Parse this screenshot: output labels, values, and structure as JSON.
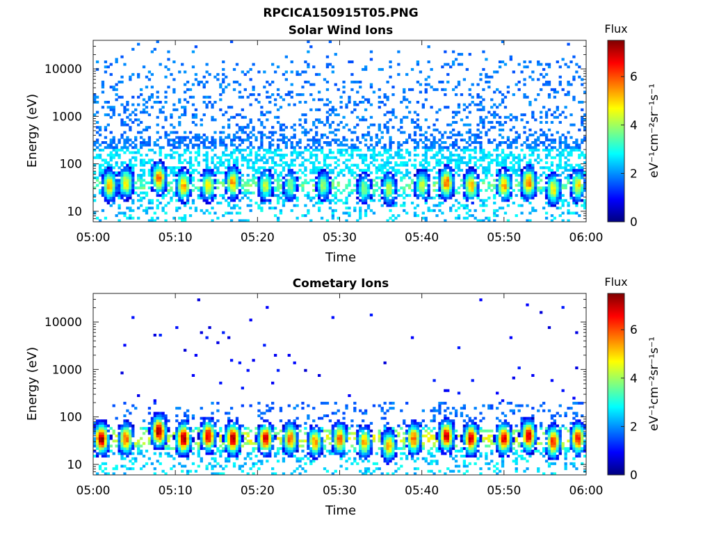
{
  "figure": {
    "title": "RPCICA150915T05.PNG"
  },
  "colorbar": {
    "label": "Flux",
    "units": "eV⁻¹cm⁻²sr⁻¹s⁻¹",
    "ticks": [
      0,
      2,
      4,
      6
    ],
    "range": [
      0,
      7.5
    ],
    "colormap": "jet"
  },
  "chart_data": [
    {
      "type": "heatmap",
      "title": "Solar Wind Ions",
      "xlabel": "Time",
      "ylabel": "Energy (eV)",
      "yscale": "log",
      "ylim": [
        6,
        40000
      ],
      "xticks": [
        "05:00",
        "05:10",
        "05:20",
        "05:30",
        "05:40",
        "05:50",
        "06:00"
      ],
      "yticks": [
        {
          "v": 10,
          "label": "10"
        },
        {
          "v": 100,
          "label": "100"
        },
        {
          "v": 1000,
          "label": "1000"
        },
        {
          "v": 10000,
          "label": "10000"
        }
      ],
      "background_flux_level": 1.5,
      "low_energy_band": {
        "energy_center_eV": 35,
        "flux_typical": 3.5
      },
      "bursts": [
        {
          "time": "05:02",
          "energy_eV": 35,
          "peak_flux": 5.5
        },
        {
          "time": "05:04",
          "energy_eV": 40,
          "peak_flux": 5.0
        },
        {
          "time": "05:08",
          "energy_eV": 50,
          "peak_flux": 6.0
        },
        {
          "time": "05:11",
          "energy_eV": 35,
          "peak_flux": 5.5
        },
        {
          "time": "05:14",
          "energy_eV": 35,
          "peak_flux": 5.0
        },
        {
          "time": "05:17",
          "energy_eV": 40,
          "peak_flux": 5.5
        },
        {
          "time": "05:21",
          "energy_eV": 35,
          "peak_flux": 4.5
        },
        {
          "time": "05:24",
          "energy_eV": 35,
          "peak_flux": 4.0
        },
        {
          "time": "05:28",
          "energy_eV": 35,
          "peak_flux": 4.0
        },
        {
          "time": "05:33",
          "energy_eV": 30,
          "peak_flux": 4.0
        },
        {
          "time": "05:36",
          "energy_eV": 30,
          "peak_flux": 4.5
        },
        {
          "time": "05:40",
          "energy_eV": 35,
          "peak_flux": 4.5
        },
        {
          "time": "05:43",
          "energy_eV": 40,
          "peak_flux": 6.0
        },
        {
          "time": "05:46",
          "energy_eV": 35,
          "peak_flux": 5.5
        },
        {
          "time": "05:50",
          "energy_eV": 35,
          "peak_flux": 5.5
        },
        {
          "time": "05:53",
          "energy_eV": 40,
          "peak_flux": 6.0
        },
        {
          "time": "05:56",
          "energy_eV": 30,
          "peak_flux": 5.0
        },
        {
          "time": "05:59",
          "energy_eV": 35,
          "peak_flux": 5.0
        }
      ]
    },
    {
      "type": "heatmap",
      "title": "Cometary Ions",
      "xlabel": "Time",
      "ylabel": "Energy (eV)",
      "yscale": "log",
      "ylim": [
        6,
        40000
      ],
      "xticks": [
        "05:00",
        "05:10",
        "05:20",
        "05:30",
        "05:40",
        "05:50",
        "06:00"
      ],
      "yticks": [
        {
          "v": 10,
          "label": "10"
        },
        {
          "v": 100,
          "label": "100"
        },
        {
          "v": 1000,
          "label": "1000"
        },
        {
          "v": 10000,
          "label": "10000"
        }
      ],
      "background_flux_level": 0.6,
      "low_energy_band": {
        "energy_center_eV": 35,
        "flux_typical": 4.5
      },
      "bursts": [
        {
          "time": "05:01",
          "energy_eV": 35,
          "peak_flux": 7.5
        },
        {
          "time": "05:04",
          "energy_eV": 35,
          "peak_flux": 6.0
        },
        {
          "time": "05:08",
          "energy_eV": 50,
          "peak_flux": 7.5
        },
        {
          "time": "05:11",
          "energy_eV": 35,
          "peak_flux": 7.5
        },
        {
          "time": "05:14",
          "energy_eV": 40,
          "peak_flux": 7.0
        },
        {
          "time": "05:17",
          "energy_eV": 35,
          "peak_flux": 7.5
        },
        {
          "time": "05:21",
          "energy_eV": 35,
          "peak_flux": 7.0
        },
        {
          "time": "05:24",
          "energy_eV": 35,
          "peak_flux": 6.0
        },
        {
          "time": "05:27",
          "energy_eV": 30,
          "peak_flux": 5.5
        },
        {
          "time": "05:30",
          "energy_eV": 35,
          "peak_flux": 6.0
        },
        {
          "time": "05:33",
          "energy_eV": 30,
          "peak_flux": 5.5
        },
        {
          "time": "05:36",
          "energy_eV": 25,
          "peak_flux": 5.5
        },
        {
          "time": "05:39",
          "energy_eV": 35,
          "peak_flux": 6.0
        },
        {
          "time": "05:43",
          "energy_eV": 40,
          "peak_flux": 7.0
        },
        {
          "time": "05:46",
          "energy_eV": 35,
          "peak_flux": 7.0
        },
        {
          "time": "05:50",
          "energy_eV": 35,
          "peak_flux": 7.0
        },
        {
          "time": "05:53",
          "energy_eV": 40,
          "peak_flux": 7.0
        },
        {
          "time": "05:56",
          "energy_eV": 30,
          "peak_flux": 6.5
        },
        {
          "time": "05:59",
          "energy_eV": 35,
          "peak_flux": 6.5
        }
      ]
    }
  ]
}
